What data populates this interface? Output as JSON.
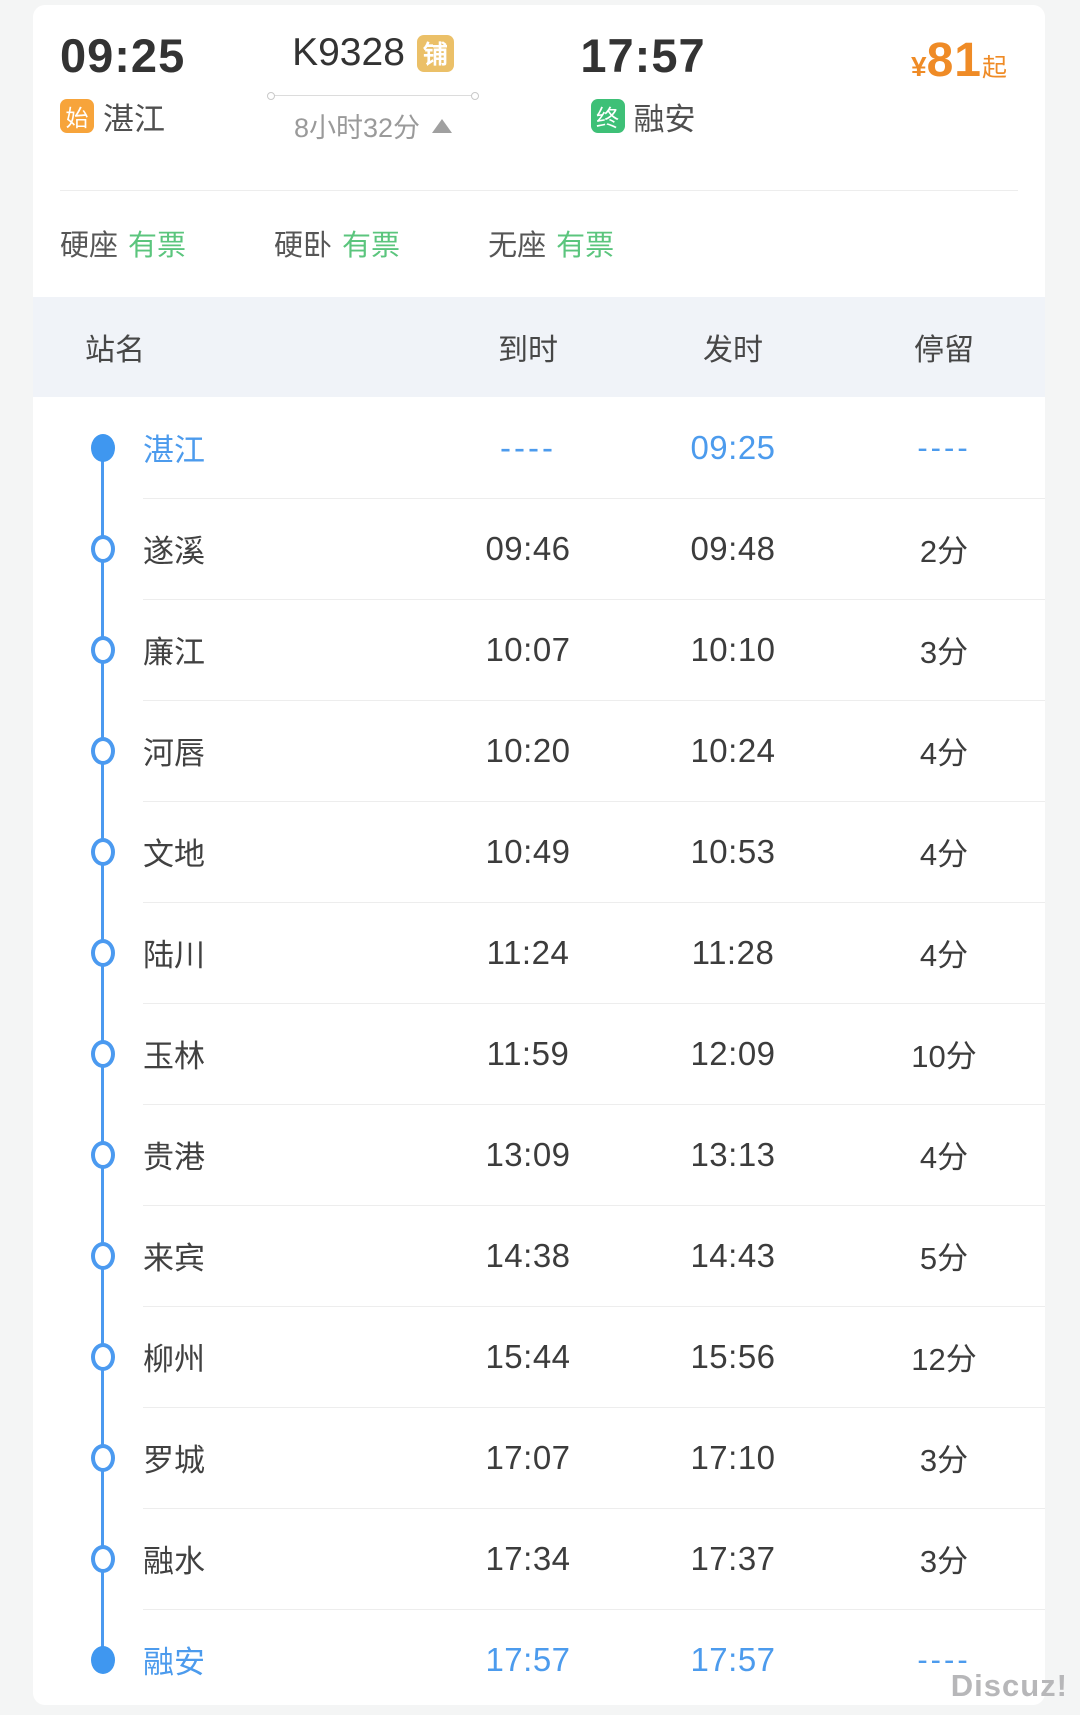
{
  "header": {
    "depart_time": "09:25",
    "arrive_time": "17:57",
    "train_no": "K9328",
    "train_badge": "铺",
    "duration": "8小时32分",
    "origin_badge": "始",
    "origin": "湛江",
    "dest_badge": "终",
    "destination": "融安",
    "price_currency": "¥",
    "price": "81",
    "price_suffix": "起"
  },
  "seats": [
    {
      "label": "硬座",
      "status": "有票"
    },
    {
      "label": "硬卧",
      "status": "有票"
    },
    {
      "label": "无座",
      "status": "有票"
    }
  ],
  "table": {
    "columns": [
      "站名",
      "到时",
      "发时",
      "停留"
    ],
    "rows": [
      {
        "station": "湛江",
        "arrive": "----",
        "depart": "09:25",
        "stop": "----",
        "terminal": true
      },
      {
        "station": "遂溪",
        "arrive": "09:46",
        "depart": "09:48",
        "stop": "2分",
        "terminal": false
      },
      {
        "station": "廉江",
        "arrive": "10:07",
        "depart": "10:10",
        "stop": "3分",
        "terminal": false
      },
      {
        "station": "河唇",
        "arrive": "10:20",
        "depart": "10:24",
        "stop": "4分",
        "terminal": false
      },
      {
        "station": "文地",
        "arrive": "10:49",
        "depart": "10:53",
        "stop": "4分",
        "terminal": false
      },
      {
        "station": "陆川",
        "arrive": "11:24",
        "depart": "11:28",
        "stop": "4分",
        "terminal": false
      },
      {
        "station": "玉林",
        "arrive": "11:59",
        "depart": "12:09",
        "stop": "10分",
        "terminal": false
      },
      {
        "station": "贵港",
        "arrive": "13:09",
        "depart": "13:13",
        "stop": "4分",
        "terminal": false
      },
      {
        "station": "来宾",
        "arrive": "14:38",
        "depart": "14:43",
        "stop": "5分",
        "terminal": false
      },
      {
        "station": "柳州",
        "arrive": "15:44",
        "depart": "15:56",
        "stop": "12分",
        "terminal": false
      },
      {
        "station": "罗城",
        "arrive": "17:07",
        "depart": "17:10",
        "stop": "3分",
        "terminal": false
      },
      {
        "station": "融水",
        "arrive": "17:34",
        "depart": "17:37",
        "stop": "3分",
        "terminal": false
      },
      {
        "station": "融安",
        "arrive": "17:57",
        "depart": "17:57",
        "stop": "----",
        "terminal": true
      }
    ]
  },
  "watermark": "Discuz!",
  "colors": {
    "accent_blue": "#4b9af0",
    "ticket_green": "#5bc57d",
    "badge_green": "#3ec077",
    "badge_orange": "#f7a43b",
    "badge_tan": "#ebc068",
    "price_orange": "#ef8b26",
    "header_bg": "#f0f3f8"
  }
}
